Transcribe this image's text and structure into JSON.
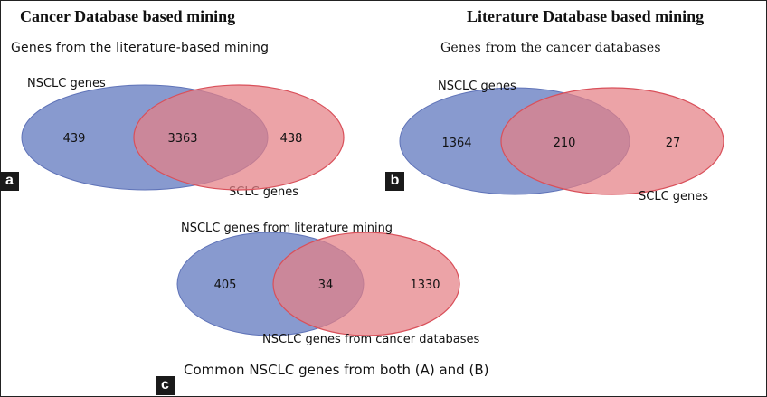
{
  "colors": {
    "set_a": "#7b8fca",
    "set_b": "#e57f85",
    "overlap": "#a85170",
    "tag_bg": "#1a1a1a"
  },
  "panel_a": {
    "tag": "a",
    "heading": "Cancer Database based mining",
    "subtitle": "Genes from the literature-based mining",
    "left_label": "NSCLC genes",
    "right_label": "SCLC genes",
    "left_only": "439",
    "overlap": "3363",
    "right_only": "438"
  },
  "panel_b": {
    "tag": "b",
    "heading": "Literature Database based mining",
    "subtitle": "Genes  from the cancer databases",
    "left_label": "NSCLC  genes",
    "right_label": "SCLC  genes",
    "left_only": "1364",
    "overlap": "210",
    "right_only": "27"
  },
  "panel_c": {
    "tag": "c",
    "top_label": "NSCLC genes from literature mining",
    "bottom_label": "NSCLC  genes from cancer  databases",
    "left_only": "405",
    "overlap": "34",
    "right_only": "1330",
    "caption": "Common NSCLC genes from both (A) and (B)"
  }
}
